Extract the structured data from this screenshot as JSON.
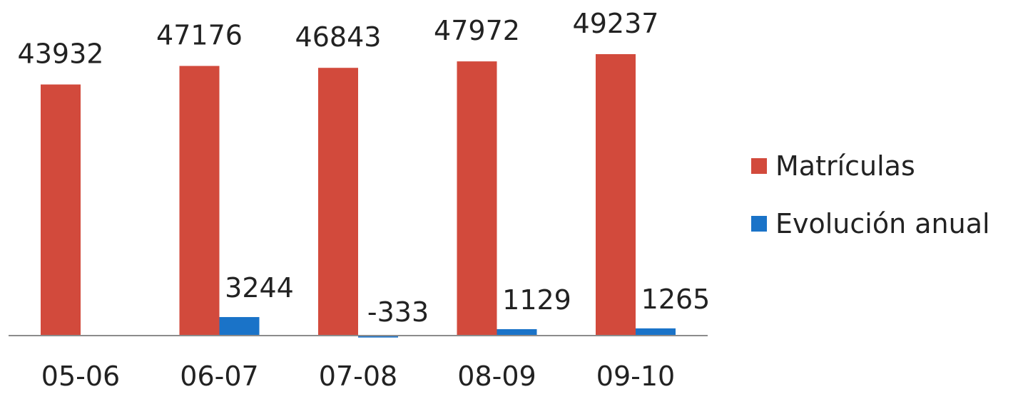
{
  "chart_data": {
    "type": "bar",
    "title": "",
    "xlabel": "",
    "ylabel": "",
    "categories": [
      "05-06",
      "06-07",
      "07-08",
      "08-09",
      "09-10"
    ],
    "series": [
      {
        "name": "Matrículas",
        "color": "#d24a3c",
        "values": [
          43932,
          47176,
          46843,
          47972,
          49237
        ],
        "labels": [
          "43932",
          "47176",
          "46843",
          "47972",
          "49237"
        ]
      },
      {
        "name": "Evolución anual",
        "color": "#1a73c8",
        "values": [
          null,
          3244,
          -333,
          1129,
          1265
        ],
        "labels": [
          "",
          "3244",
          "-333",
          "1129",
          "1265"
        ]
      }
    ],
    "ylim": [
      0,
      49237
    ],
    "grid": false,
    "y_axis_visible": false,
    "legend_position": "right"
  }
}
